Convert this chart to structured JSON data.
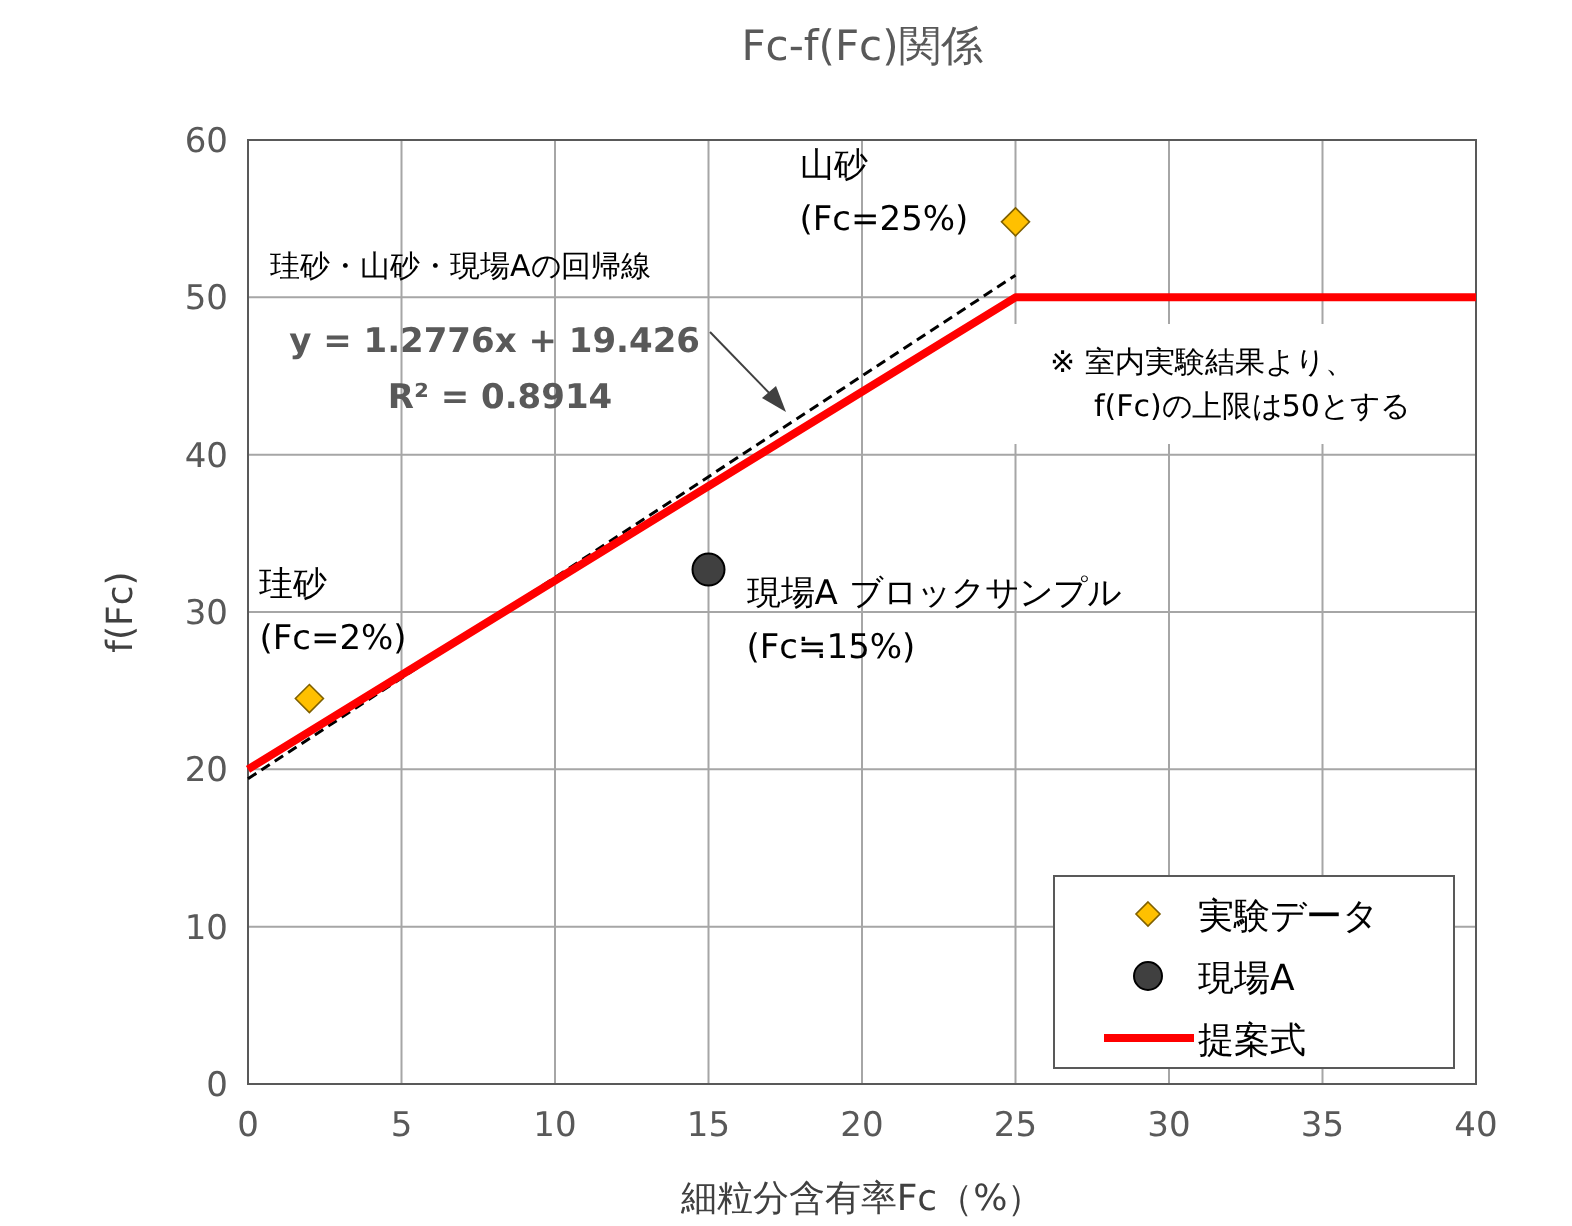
{
  "chart_data": {
    "type": "scatter",
    "title": "Fc-f(Fc)関係",
    "xlabel": "細粒分含有率Fc（%）",
    "ylabel": "f(Fc)",
    "xlim": [
      0,
      40
    ],
    "xticks": [
      0,
      5,
      10,
      15,
      20,
      25,
      30,
      35,
      40
    ],
    "ylim": [
      0,
      60
    ],
    "yticks": [
      0,
      10,
      20,
      30,
      40,
      50,
      60
    ],
    "grid": true,
    "legend": "bottom right",
    "series": [
      {
        "type": "line",
        "x": [
          0,
          25
        ],
        "values": [
          19.4,
          51.4
        ],
        "color": "#000000",
        "line_style": "dashed",
        "marker": "none"
      },
      {
        "type": "line",
        "name": "提案式",
        "x": [
          0,
          25,
          40
        ],
        "values": [
          20,
          50,
          50
        ],
        "color": "#ff0000",
        "line_style": "solid",
        "marker": "none"
      },
      {
        "name": "実験データ",
        "x": [
          2,
          25
        ],
        "values": [
          24.5,
          54.8
        ],
        "color": "#ffc000",
        "marker": "diamond"
      },
      {
        "name": "現場A",
        "x": [
          15
        ],
        "values": [
          32.7
        ],
        "color": "#404040",
        "marker": "circle"
      }
    ],
    "annotations": [
      "珪砂・山砂・現場Aの回帰線",
      "y = 1.2776x + 19.426",
      "R² = 0.8914",
      "※ 室内実験結果より、\nf(Fc)の上限は50とする",
      {
        "text": "山砂\n(Fc=25%)",
        "x": 25,
        "y": 54.8
      },
      {
        "text": "珪砂\n(Fc=2%)",
        "x": 2,
        "y": 24.5
      },
      {
        "text": "現場A ブロックサンプル\n(Fc≒15%)",
        "x": 15,
        "y": 32.7
      }
    ]
  }
}
